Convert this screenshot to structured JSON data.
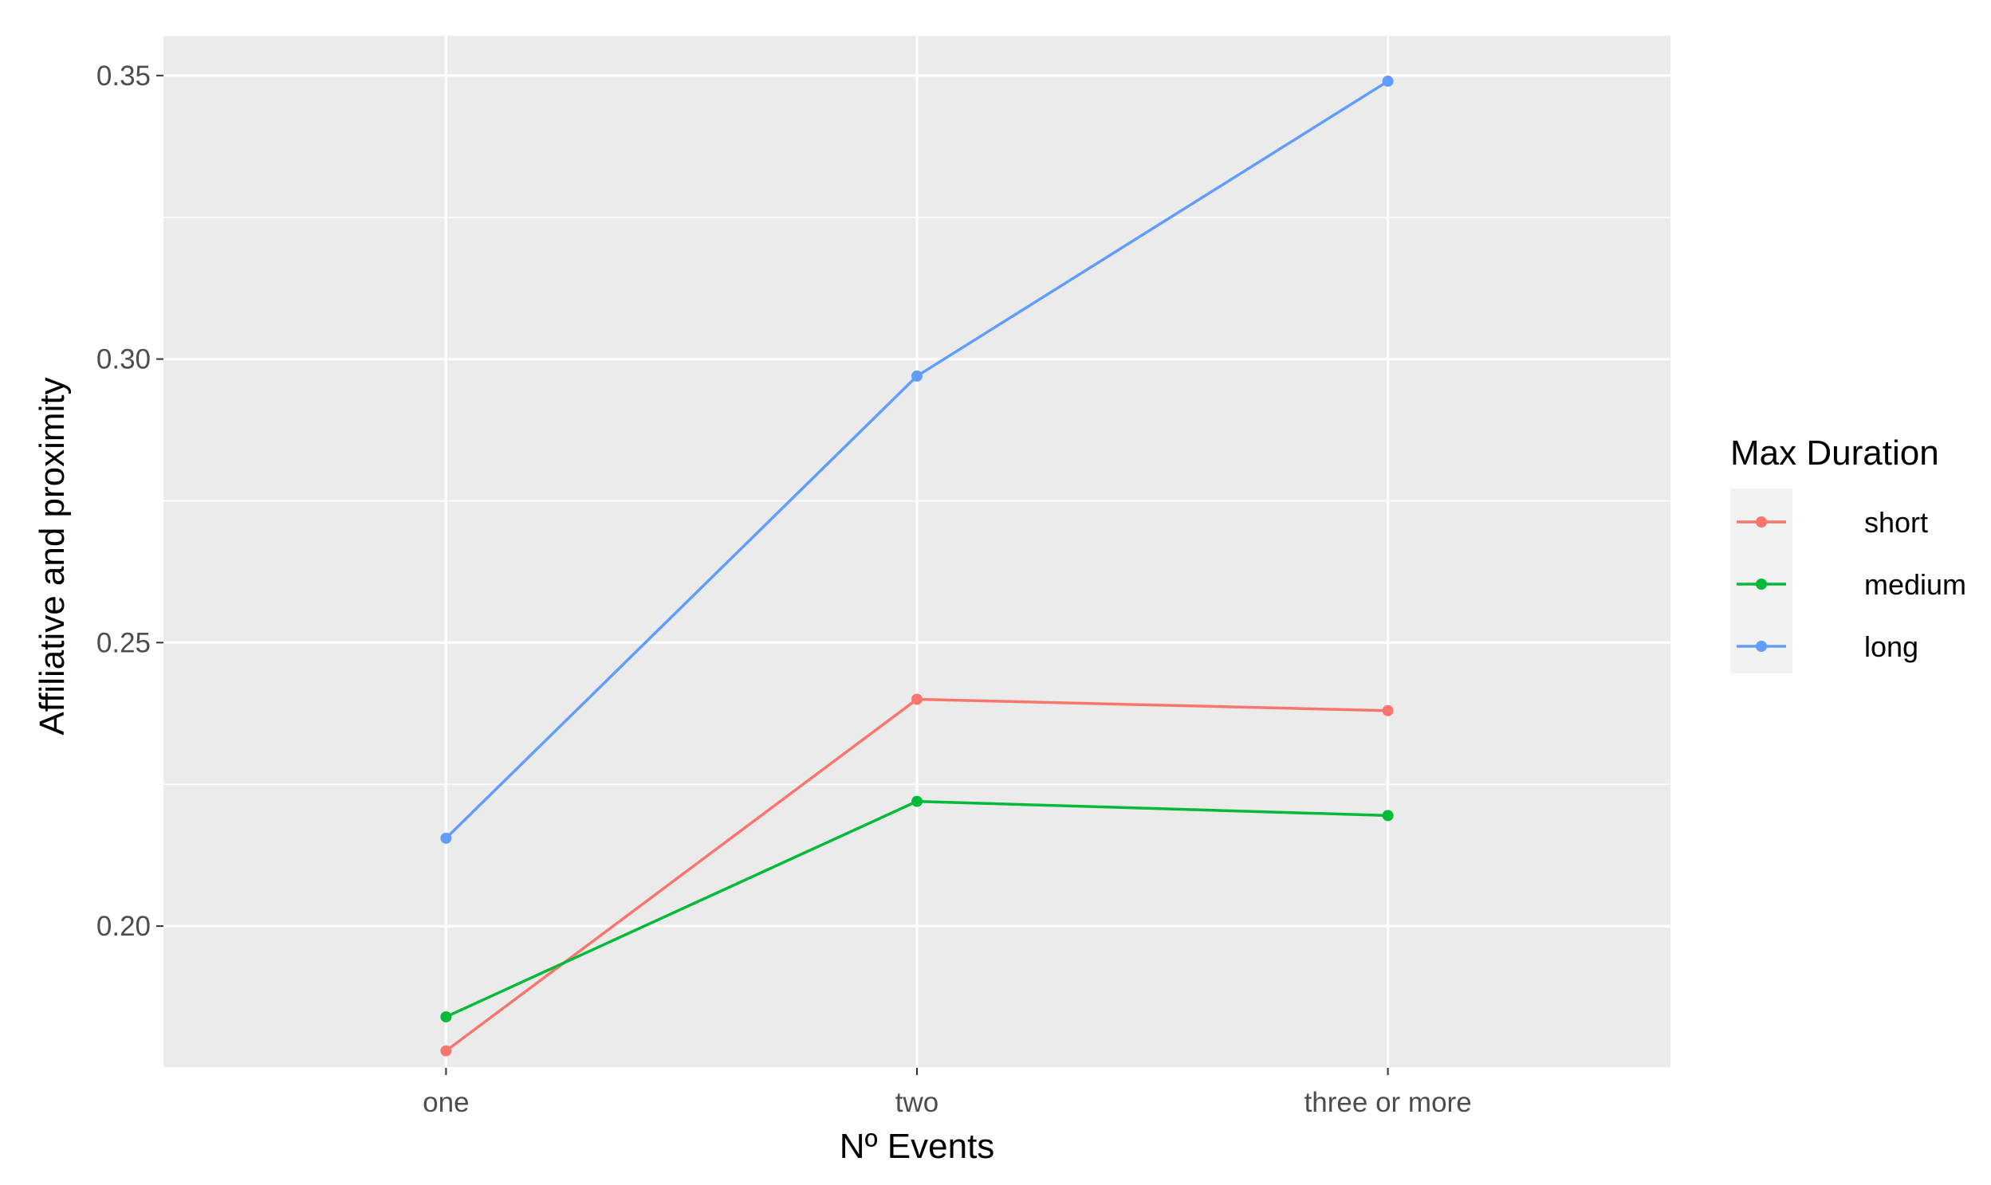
{
  "chart_data": {
    "type": "line",
    "title": "",
    "xlabel": "Nº Events",
    "ylabel": "Affiliative and proximity",
    "categories": [
      "one",
      "two",
      "three or more"
    ],
    "ylim": [
      0.175,
      0.357
    ],
    "yticks": [
      0.2,
      0.25,
      0.3,
      0.35
    ],
    "ytick_labels": [
      "0.20",
      "0.25",
      "0.30",
      "0.35"
    ],
    "grid": true,
    "legend": {
      "title": "Max Duration",
      "position": "right"
    },
    "series": [
      {
        "name": "short",
        "color": "#F8766D",
        "values": [
          0.178,
          0.24,
          0.238
        ]
      },
      {
        "name": "medium",
        "color": "#00BA38",
        "values": [
          0.184,
          0.222,
          0.2195
        ]
      },
      {
        "name": "long",
        "color": "#619CFF",
        "values": [
          0.2155,
          0.297,
          0.349
        ]
      }
    ]
  }
}
